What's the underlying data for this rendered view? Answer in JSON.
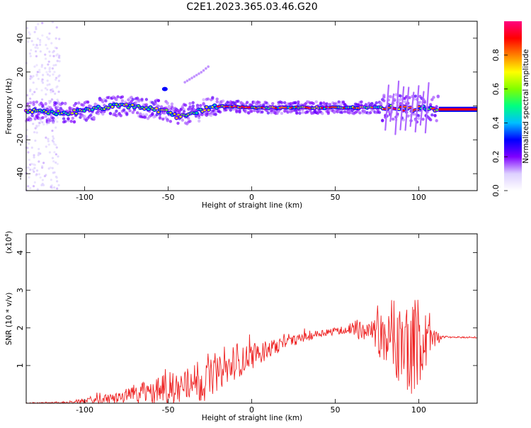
{
  "figure": {
    "title": "C2E1.2023.365.03.46.G20"
  },
  "chart_data": [
    {
      "type": "heatmap",
      "name": "spectrogram",
      "xlabel": "Height of straight line (km)",
      "ylabel": "Frequency (Hz)",
      "xlim": [
        -135,
        135
      ],
      "ylim": [
        -50,
        50
      ],
      "xticks": [
        -100,
        -50,
        0,
        50,
        100
      ],
      "yticks": [
        -40,
        -20,
        0,
        20,
        40
      ],
      "grid": false,
      "colorbar": {
        "label": "Normalized spectral amplitude",
        "range": [
          0,
          1
        ],
        "ticks": [
          "0.0",
          "0.2",
          "0.4",
          "0.6",
          "0.8"
        ],
        "colormap": [
          "#ffffff",
          "#ddd0ff",
          "#7f00ff",
          "#0000ff",
          "#00bfff",
          "#00ff80",
          "#80ff00",
          "#ffff00",
          "#ff8000",
          "#ff0000",
          "#ff0080"
        ]
      },
      "ridge": [
        {
          "x": -135,
          "f": -3
        },
        {
          "x": -120,
          "f": -4
        },
        {
          "x": -110,
          "f": -4
        },
        {
          "x": -100,
          "f": -3
        },
        {
          "x": -90,
          "f": -1
        },
        {
          "x": -80,
          "f": 0
        },
        {
          "x": -70,
          "f": 0
        },
        {
          "x": -60,
          "f": -2
        },
        {
          "x": -52,
          "f": -3
        },
        {
          "x": -45,
          "f": -6
        },
        {
          "x": -35,
          "f": -4
        },
        {
          "x": -25,
          "f": -1
        },
        {
          "x": -15,
          "f": 0
        },
        {
          "x": 0,
          "f": -1
        },
        {
          "x": 20,
          "f": -1
        },
        {
          "x": 40,
          "f": -1
        },
        {
          "x": 60,
          "f": -1
        },
        {
          "x": 75,
          "f": -1
        },
        {
          "x": 85,
          "f": -1
        },
        {
          "x": 95,
          "f": -2
        },
        {
          "x": 105,
          "f": -1
        },
        {
          "x": 112,
          "f": -2
        },
        {
          "x": 135,
          "f": -2
        }
      ],
      "upper_branch": [
        {
          "x": -40,
          "f": 14
        },
        {
          "x": -30,
          "f": 20
        },
        {
          "x": -25,
          "f": 24
        }
      ]
    },
    {
      "type": "line",
      "name": "snr",
      "xlabel": "Height of straight line (km)",
      "ylabel": "SNR (10 * v/v)",
      "exponent_label": "(x10",
      "exponent_power": "4",
      "exponent_close": ")",
      "xlim": [
        -135,
        135
      ],
      "ylim": [
        0,
        4.5
      ],
      "xticks": [
        -100,
        -50,
        0,
        50,
        100
      ],
      "yticks": [
        1,
        2,
        3,
        4
      ],
      "grid": false,
      "color": "#ee2222",
      "envelope": [
        {
          "x": -135,
          "base": 0.0,
          "amp": 0.02
        },
        {
          "x": -110,
          "base": 0.02,
          "amp": 0.05
        },
        {
          "x": -90,
          "base": 0.08,
          "amp": 0.22
        },
        {
          "x": -70,
          "base": 0.22,
          "amp": 0.45
        },
        {
          "x": -50,
          "base": 0.35,
          "amp": 0.9
        },
        {
          "x": -30,
          "base": 0.55,
          "amp": 1.1
        },
        {
          "x": -15,
          "base": 0.9,
          "amp": 0.8
        },
        {
          "x": 0,
          "base": 1.25,
          "amp": 0.7
        },
        {
          "x": 20,
          "base": 1.6,
          "amp": 0.3
        },
        {
          "x": 40,
          "base": 1.85,
          "amp": 0.2
        },
        {
          "x": 55,
          "base": 1.95,
          "amp": 0.2
        },
        {
          "x": 60,
          "base": 1.95,
          "amp": 0.45
        },
        {
          "x": 70,
          "base": 1.9,
          "amp": 0.55
        },
        {
          "x": 75,
          "base": 1.9,
          "amp": 1.0
        },
        {
          "x": 80,
          "base": 1.6,
          "amp": 1.5
        },
        {
          "x": 90,
          "base": 1.5,
          "amp": 2.2
        },
        {
          "x": 95,
          "base": 1.6,
          "amp": 2.8
        },
        {
          "x": 100,
          "base": 1.6,
          "amp": 2.3
        },
        {
          "x": 105,
          "base": 1.6,
          "amp": 1.6
        },
        {
          "x": 110,
          "base": 1.7,
          "amp": 0.4
        },
        {
          "x": 115,
          "base": 1.76,
          "amp": 0.05
        },
        {
          "x": 135,
          "base": 1.74,
          "amp": 0.03
        }
      ]
    }
  ]
}
